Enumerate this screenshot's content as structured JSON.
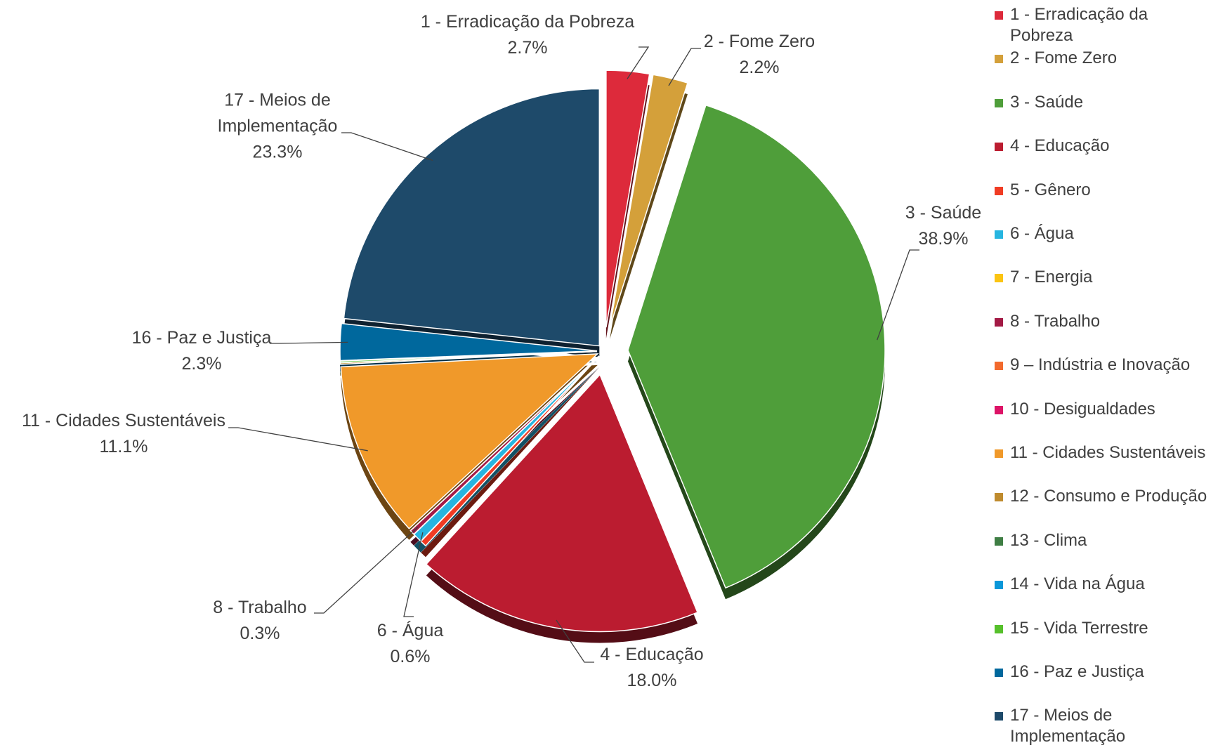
{
  "chart_data": {
    "type": "pie",
    "categories": [
      "1 - Erradicação da Pobreza",
      "2 - Fome Zero",
      "3 - Saúde",
      "4 - Educação",
      "5 - Gênero",
      "6 - Água",
      "7 - Energia",
      "8 - Trabalho",
      "9 – Indústria e Inovação",
      "10 - Desigualdades",
      "11 - Cidades Sustentáveis",
      "12 - Consumo e Produção",
      "13 - Clima",
      "14 - Vida na Água",
      "15 - Vida Terrestre",
      "16 - Paz e Justiça",
      "17 - Meios de Implementação"
    ],
    "values": [
      2.7,
      2.2,
      38.9,
      18.0,
      0.4,
      0.6,
      0,
      0.3,
      0,
      0,
      11.1,
      0.1,
      0,
      0,
      0.1,
      2.3,
      23.3
    ],
    "value_labels": [
      "2.7%",
      "2.2%",
      "38.9%",
      "18.0%",
      null,
      "0.6%",
      null,
      "0.3%",
      null,
      null,
      "11.1%",
      null,
      null,
      null,
      null,
      "2.3%",
      "23.3%"
    ],
    "colors": [
      "#dd2a3b",
      "#d4a03a",
      "#4f9e3a",
      "#bb1c30",
      "#f03c24",
      "#27b5e0",
      "#fbc412",
      "#a31a45",
      "#f26a2d",
      "#dd1367",
      "#f0992a",
      "#bf8b2e",
      "#3f7e44",
      "#0a97d9",
      "#56c02b",
      "#00689d",
      "#1e4a6a"
    ],
    "legend": "right"
  }
}
